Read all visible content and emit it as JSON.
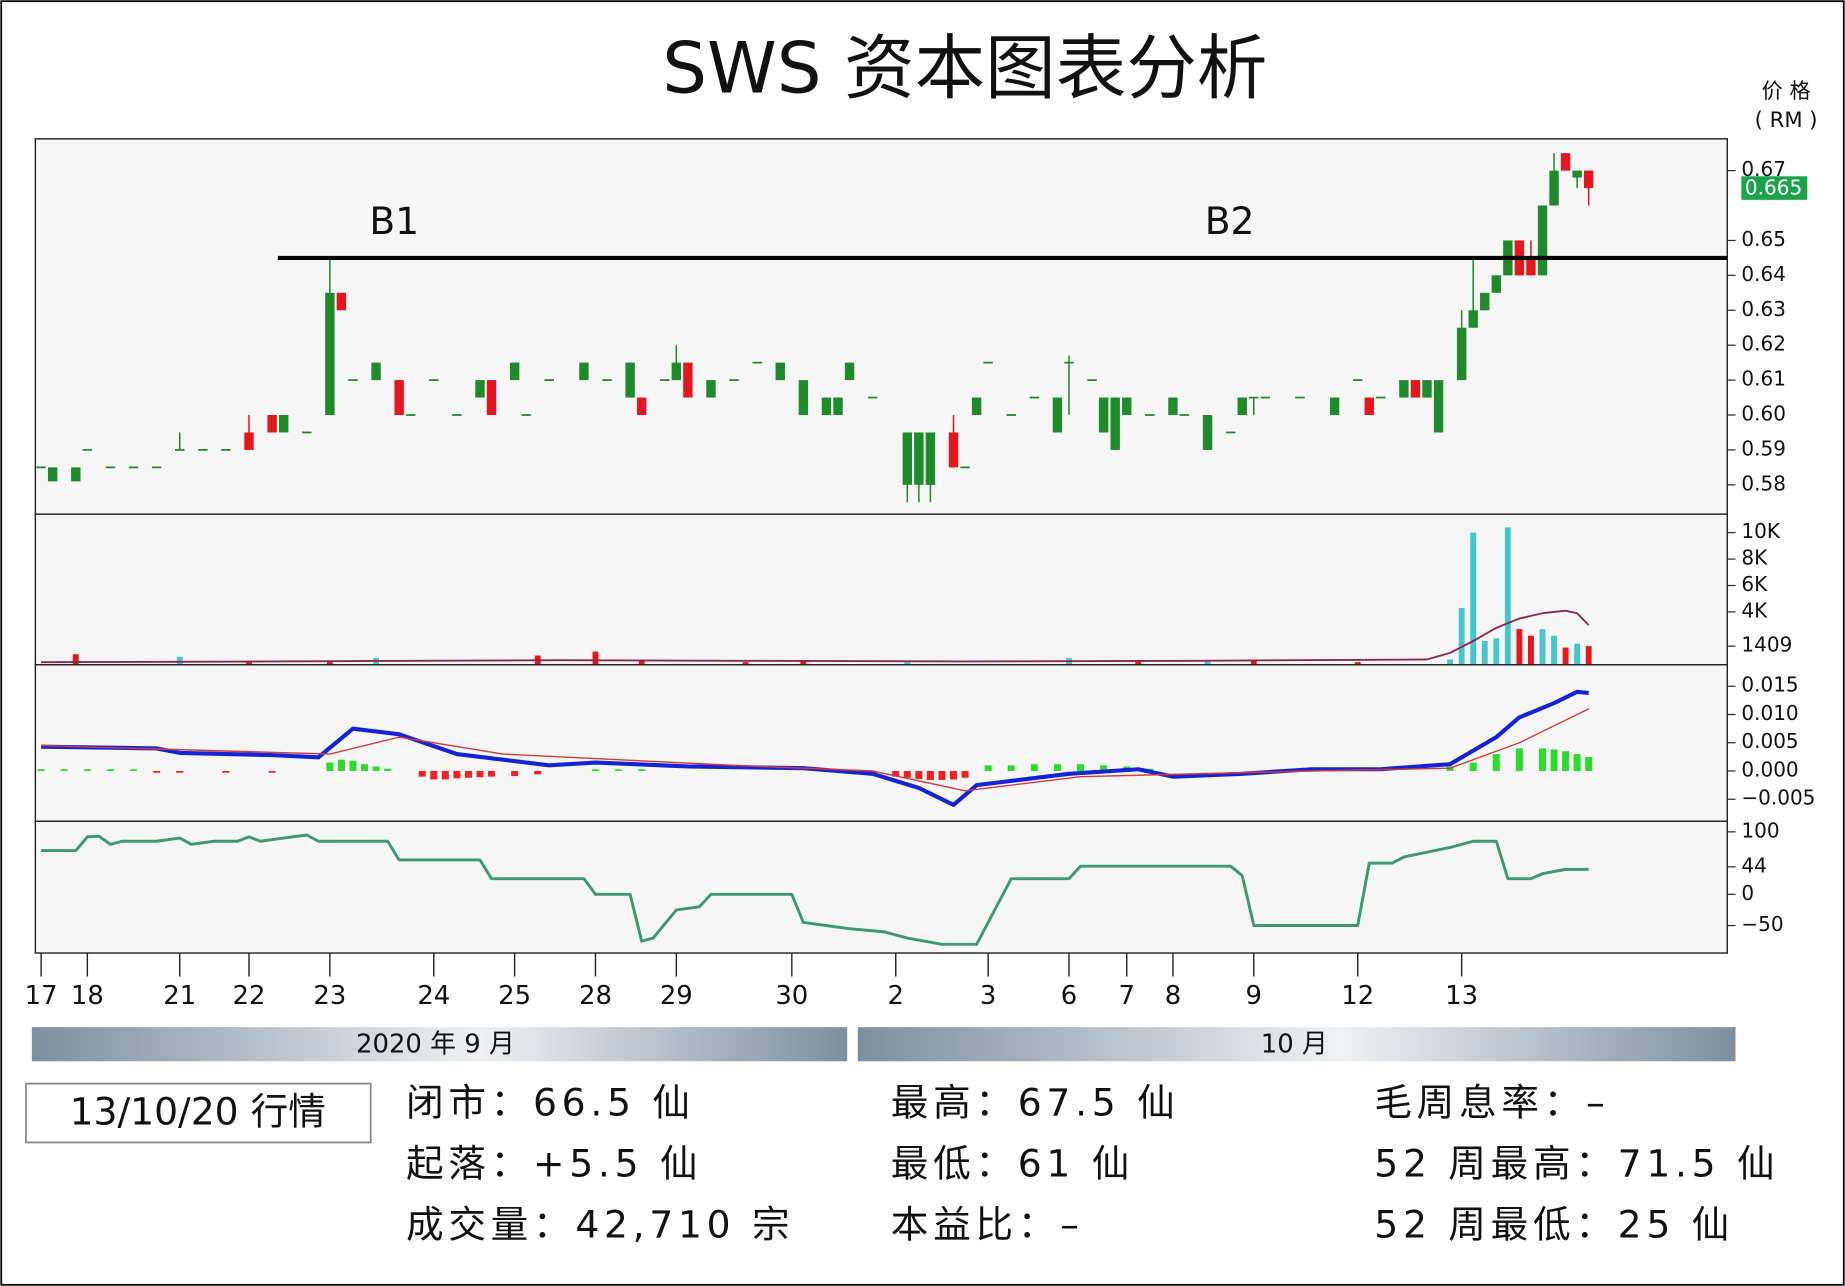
{
  "title": "SWS 资本图表分析",
  "unit_label": [
    "价 格",
    "( RM )"
  ],
  "x_axis": {
    "xlim": [
      -0.5,
      146
    ],
    "xticks": [
      {
        "value": 0,
        "label": "17"
      },
      {
        "value": 4,
        "label": "18"
      },
      {
        "value": 12,
        "label": "21"
      },
      {
        "value": 18,
        "label": "22"
      },
      {
        "value": 25,
        "label": "23"
      },
      {
        "value": 34,
        "label": "24"
      },
      {
        "value": 41,
        "label": "25"
      },
      {
        "value": 48,
        "label": "28"
      },
      {
        "value": 55,
        "label": "29"
      },
      {
        "value": 65,
        "label": "30"
      },
      {
        "value": 74,
        "label": "2"
      },
      {
        "value": 82,
        "label": "3"
      },
      {
        "value": 89,
        "label": "6"
      },
      {
        "value": 94,
        "label": "7"
      },
      {
        "value": 98,
        "label": "8"
      },
      {
        "value": 105,
        "label": "9"
      },
      {
        "value": 114,
        "label": "12"
      },
      {
        "value": 123,
        "label": "13"
      }
    ]
  },
  "month_bands": [
    "2020 年 9 月",
    "10 月"
  ],
  "chart_data": [
    {
      "type": "candlestick",
      "up_color": "#1f8a2a",
      "down_color": "#e3171e",
      "x": [
        0,
        1,
        3,
        4,
        6,
        8,
        10,
        12,
        14,
        16,
        18,
        20,
        21,
        23,
        25,
        26,
        27,
        29,
        31,
        32,
        34,
        36,
        38,
        39,
        41,
        42,
        44,
        47,
        49,
        51,
        52,
        54,
        55,
        56,
        58,
        60,
        62,
        64,
        66,
        68,
        69,
        70,
        72,
        75,
        76,
        77,
        79,
        80,
        81,
        82,
        84,
        86,
        88,
        89,
        91,
        92,
        93,
        94,
        96,
        98,
        99,
        101,
        103,
        104,
        105,
        106,
        109,
        112,
        114,
        115,
        116,
        118,
        119,
        120,
        121,
        123,
        124,
        125,
        126,
        127,
        128,
        129,
        130,
        131,
        132,
        133,
        134
      ],
      "open": [
        0.585,
        0.581,
        0.581,
        0.59,
        0.585,
        0.585,
        0.585,
        0.59,
        0.59,
        0.59,
        0.595,
        0.6,
        0.595,
        0.595,
        0.6,
        0.635,
        0.61,
        0.61,
        0.61,
        0.6,
        0.61,
        0.6,
        0.605,
        0.61,
        0.61,
        0.6,
        0.61,
        0.61,
        0.61,
        0.605,
        0.605,
        0.61,
        0.61,
        0.615,
        0.605,
        0.61,
        0.615,
        0.61,
        0.6,
        0.6,
        0.6,
        0.61,
        0.605,
        0.58,
        0.58,
        0.58,
        0.595,
        0.585,
        0.6,
        0.615,
        0.6,
        0.605,
        0.595,
        0.615,
        0.61,
        0.595,
        0.59,
        0.6,
        0.6,
        0.6,
        0.6,
        0.59,
        0.595,
        0.6,
        0.605,
        0.605,
        0.605,
        0.6,
        0.61,
        0.605,
        0.605,
        0.605,
        0.61,
        0.605,
        0.595,
        0.61,
        0.625,
        0.63,
        0.635,
        0.64,
        0.65,
        0.645,
        0.64,
        0.66,
        0.675,
        0.668,
        0.67
      ],
      "high": [
        0.585,
        0.585,
        0.585,
        0.59,
        0.585,
        0.585,
        0.585,
        0.595,
        0.59,
        0.59,
        0.6,
        0.6,
        0.6,
        0.595,
        0.645,
        0.635,
        0.61,
        0.615,
        0.61,
        0.6,
        0.61,
        0.6,
        0.61,
        0.61,
        0.615,
        0.6,
        0.61,
        0.615,
        0.61,
        0.615,
        0.605,
        0.61,
        0.62,
        0.615,
        0.61,
        0.61,
        0.615,
        0.615,
        0.61,
        0.605,
        0.605,
        0.615,
        0.605,
        0.595,
        0.595,
        0.595,
        0.6,
        0.585,
        0.605,
        0.615,
        0.6,
        0.605,
        0.605,
        0.617,
        0.61,
        0.605,
        0.605,
        0.605,
        0.6,
        0.605,
        0.6,
        0.6,
        0.595,
        0.605,
        0.605,
        0.605,
        0.605,
        0.605,
        0.61,
        0.605,
        0.605,
        0.61,
        0.61,
        0.61,
        0.61,
        0.63,
        0.645,
        0.635,
        0.64,
        0.65,
        0.65,
        0.65,
        0.66,
        0.675,
        0.675,
        0.67,
        0.67
      ],
      "low": [
        0.585,
        0.581,
        0.581,
        0.59,
        0.585,
        0.585,
        0.585,
        0.59,
        0.59,
        0.59,
        0.59,
        0.595,
        0.595,
        0.595,
        0.6,
        0.63,
        0.61,
        0.61,
        0.6,
        0.6,
        0.61,
        0.6,
        0.605,
        0.6,
        0.61,
        0.6,
        0.61,
        0.61,
        0.61,
        0.605,
        0.6,
        0.61,
        0.61,
        0.605,
        0.605,
        0.61,
        0.615,
        0.61,
        0.6,
        0.6,
        0.6,
        0.61,
        0.605,
        0.575,
        0.575,
        0.575,
        0.585,
        0.585,
        0.6,
        0.615,
        0.6,
        0.605,
        0.595,
        0.6,
        0.61,
        0.595,
        0.59,
        0.6,
        0.6,
        0.6,
        0.6,
        0.59,
        0.595,
        0.6,
        0.6,
        0.605,
        0.605,
        0.6,
        0.61,
        0.6,
        0.605,
        0.605,
        0.605,
        0.605,
        0.595,
        0.61,
        0.625,
        0.63,
        0.635,
        0.64,
        0.64,
        0.64,
        0.64,
        0.66,
        0.67,
        0.665,
        0.66
      ],
      "close": [
        0.585,
        0.585,
        0.585,
        0.59,
        0.585,
        0.585,
        0.585,
        0.59,
        0.59,
        0.59,
        0.59,
        0.595,
        0.6,
        0.595,
        0.635,
        0.63,
        0.61,
        0.615,
        0.6,
        0.6,
        0.61,
        0.6,
        0.61,
        0.6,
        0.615,
        0.6,
        0.61,
        0.615,
        0.61,
        0.615,
        0.6,
        0.61,
        0.615,
        0.605,
        0.61,
        0.61,
        0.615,
        0.615,
        0.61,
        0.605,
        0.605,
        0.615,
        0.605,
        0.595,
        0.595,
        0.595,
        0.585,
        0.585,
        0.605,
        0.615,
        0.6,
        0.605,
        0.605,
        0.615,
        0.61,
        0.605,
        0.605,
        0.605,
        0.6,
        0.605,
        0.6,
        0.6,
        0.595,
        0.605,
        0.605,
        0.605,
        0.605,
        0.605,
        0.61,
        0.6,
        0.605,
        0.61,
        0.605,
        0.61,
        0.61,
        0.625,
        0.63,
        0.635,
        0.64,
        0.65,
        0.64,
        0.64,
        0.66,
        0.67,
        0.67,
        0.67,
        0.665
      ],
      "ylim": [
        0.5716,
        0.6791
      ],
      "yticks": [
        0.58,
        0.59,
        {
          "value": 0.6,
          "label": "0.60"
        },
        0.61,
        0.62,
        0.63,
        0.64,
        0.65,
        0.67
      ],
      "last_price": {
        "value": 0.665,
        "label": "0.665",
        "color": "#1aa34a"
      },
      "resistance": {
        "value": 0.645,
        "x_start": 20.5
      },
      "annotations": [
        "B1",
        "B2"
      ]
    },
    {
      "type": "bar",
      "x": [
        3,
        12,
        18,
        25,
        29,
        43,
        48,
        52,
        61,
        66,
        75,
        89,
        95,
        101,
        105,
        114,
        122,
        123,
        124,
        125,
        126,
        127,
        128,
        129,
        130,
        131,
        132,
        133,
        134
      ],
      "values": [
        800,
        600,
        300,
        200,
        500,
        700,
        1000,
        300,
        200,
        300,
        200,
        500,
        300,
        300,
        300,
        200,
        400,
        4300,
        10000,
        1800,
        2000,
        10400,
        2700,
        2200,
        2700,
        2200,
        1300,
        1600,
        1409
      ],
      "colors": [
        "#e3171e",
        "#45c6cf",
        "#e3171e",
        "#e3171e",
        "#45c6cf",
        "#e3171e",
        "#e3171e",
        "#e3171e",
        "#e3171e",
        "#e3171e",
        "#45c6cf",
        "#45c6cf",
        "#e3171e",
        "#45c6cf",
        "#e3171e",
        "#e3171e",
        "#45c6cf",
        "#45c6cf",
        "#45c6cf",
        "#45c6cf",
        "#45c6cf",
        "#45c6cf",
        "#e3171e",
        "#e3171e",
        "#45c6cf",
        "#45c6cf",
        "#e3171e",
        "#45c6cf",
        "#e3171e"
      ],
      "lines": [
        {
          "color": "#8a2a4a",
          "x": [
            0,
            20,
            45,
            60,
            80,
            100,
            120,
            122,
            124,
            126,
            128,
            130,
            132,
            133,
            134
          ],
          "values": [
            200,
            250,
            350,
            300,
            250,
            300,
            400,
            900,
            1800,
            2800,
            3500,
            3900,
            4100,
            3900,
            3000
          ]
        }
      ],
      "ylim": [
        0,
        11400
      ],
      "yticks": [
        {
          "value": 10000,
          "label": "10K"
        },
        {
          "value": 8000,
          "label": "8K"
        },
        {
          "value": 6000,
          "label": "6K"
        },
        {
          "value": 4000,
          "label": "4K"
        },
        1409
      ]
    },
    {
      "type": "macd",
      "histogram": {
        "up_color": "#2bdc2b",
        "down_color": "#ee2222",
        "x": [
          0,
          2,
          4,
          6,
          8,
          10,
          12,
          16,
          20,
          25,
          26,
          27,
          28,
          29,
          30,
          33,
          34,
          35,
          36,
          37,
          38,
          39,
          41,
          43,
          48,
          50,
          52,
          70,
          72,
          74,
          75,
          76,
          77,
          78,
          79,
          80,
          82,
          84,
          86,
          88,
          90,
          92,
          94,
          96,
          122,
          124,
          126,
          128,
          130,
          131,
          132,
          133,
          134
        ],
        "values": [
          0.0003,
          0.0003,
          0.0003,
          0.0003,
          0.0003,
          -0.0003,
          -0.0003,
          -0.0003,
          -0.0003,
          0.0015,
          0.002,
          0.0018,
          0.0012,
          0.0008,
          0.0004,
          -0.001,
          -0.0015,
          -0.0015,
          -0.0013,
          -0.0012,
          -0.0011,
          -0.001,
          -0.0009,
          -0.0006,
          0.0003,
          0.0003,
          0.0003,
          -0.0004,
          -0.0006,
          -0.001,
          -0.0012,
          -0.0014,
          -0.0016,
          -0.0016,
          -0.0015,
          -0.0012,
          0.001,
          0.001,
          0.0012,
          0.0012,
          0.0012,
          0.001,
          0.0008,
          0.0004,
          0.0008,
          0.0015,
          0.003,
          0.004,
          0.004,
          0.0038,
          0.0035,
          0.003,
          0.0025
        ]
      },
      "lines": [
        {
          "color": "#1424d4",
          "width": 3.5,
          "x": [
            0,
            10,
            12,
            20,
            24,
            27,
            31,
            36,
            44,
            48,
            56,
            66,
            72,
            76,
            79,
            81,
            89,
            95,
            98,
            104,
            110,
            116,
            122,
            126,
            128,
            131,
            133,
            134
          ],
          "values": [
            0.0043,
            0.004,
            0.0032,
            0.0028,
            0.0024,
            0.0075,
            0.0065,
            0.003,
            0.001,
            0.0015,
            0.0008,
            0.0005,
            -0.0005,
            -0.003,
            -0.006,
            -0.0025,
            -0.0005,
            0.0003,
            -0.001,
            -0.0005,
            0.0003,
            0.0003,
            0.0012,
            0.006,
            0.0095,
            0.012,
            0.014,
            0.0138
          ]
        },
        {
          "color": "#d23a3a",
          "width": 1.2,
          "x": [
            0,
            25,
            31,
            40,
            60,
            72,
            80,
            90,
            110,
            122,
            128,
            134
          ],
          "values": [
            0.0045,
            0.003,
            0.006,
            0.003,
            0.001,
            0,
            -0.0035,
            -0.001,
            0,
            0.0005,
            0.005,
            0.011
          ]
        }
      ],
      "ylim": [
        -0.0089,
        0.0188
      ],
      "yticks": [
        0.015,
        {
          "value": 0.01,
          "label": "0.010"
        },
        0.005,
        {
          "value": 0,
          "label": "0.000"
        },
        {
          "value": -0.005,
          "label": "−0.005"
        }
      ]
    },
    {
      "type": "line",
      "lines": [
        {
          "color": "#3d9a6e",
          "width": 2.5,
          "x": [
            0,
            3,
            4,
            5,
            6,
            7,
            10,
            12,
            13,
            15,
            17,
            18,
            19,
            21,
            23,
            24,
            30,
            31,
            38,
            39,
            47,
            48,
            51,
            52,
            53,
            55,
            57,
            58,
            65,
            66,
            70,
            73,
            75,
            78,
            81,
            84,
            89,
            90,
            103,
            104,
            105,
            114,
            115,
            117,
            118,
            122,
            124,
            126,
            127,
            129,
            130,
            132,
            134
          ],
          "values": [
            70,
            70,
            92,
            93,
            80,
            85,
            85,
            90,
            80,
            85,
            85,
            92,
            85,
            90,
            95,
            85,
            85,
            55,
            55,
            25,
            25,
            0,
            0,
            -75,
            -70,
            -25,
            -20,
            0,
            0,
            -45,
            -55,
            -60,
            -70,
            -80,
            -80,
            25,
            25,
            45,
            45,
            30,
            -50,
            -50,
            50,
            50,
            60,
            75,
            85,
            85,
            25,
            25,
            33,
            40,
            40
          ]
        }
      ],
      "ylim": [
        -94,
        117
      ],
      "yticks": [
        100,
        44,
        0,
        {
          "value": -50,
          "label": "−50"
        }
      ]
    }
  ],
  "info": {
    "date_box": "13/10/20 行情",
    "items": [
      "闭市：66.5 仙",
      "起落：+5.5 仙",
      "成交量：42,710 宗",
      "最高：67.5 仙",
      "最低：61 仙",
      "本益比：–",
      "毛周息率：–",
      "52 周最高：71.5 仙",
      "52 周最低：25 仙"
    ]
  }
}
